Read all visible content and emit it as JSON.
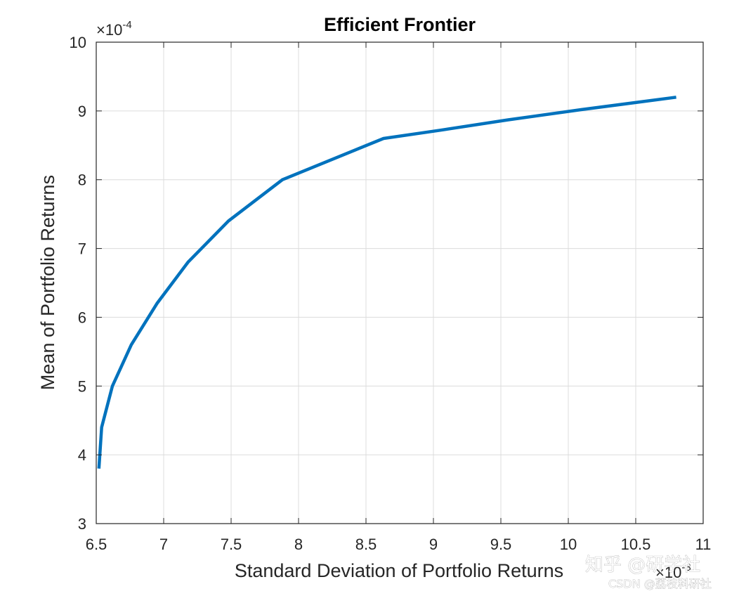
{
  "chart_data": {
    "type": "line",
    "title": "Efficient Frontier",
    "xlabel": "Standard Deviation of Portfolio Returns",
    "ylabel": "Mean of Portfolio Returns",
    "x_exponent": {
      "base": "×10",
      "power": "-3"
    },
    "y_exponent": {
      "base": "×10",
      "power": "-4"
    },
    "xlim": [
      6.5,
      11
    ],
    "ylim": [
      3,
      10
    ],
    "xticks": [
      "6.5",
      "7",
      "7.5",
      "8",
      "8.5",
      "9",
      "9.5",
      "10",
      "10.5",
      "11"
    ],
    "yticks": [
      "3",
      "4",
      "5",
      "6",
      "7",
      "8",
      "9",
      "10"
    ],
    "grid": true,
    "series": [
      {
        "color": "#0072BD",
        "x": [
          6.52,
          6.54,
          6.62,
          6.76,
          6.95,
          7.18,
          7.48,
          7.88,
          8.63,
          9.05,
          9.55,
          10.1,
          10.8
        ],
        "y": [
          3.8,
          4.4,
          5.0,
          5.6,
          6.2,
          6.8,
          7.4,
          8.0,
          8.6,
          8.72,
          8.87,
          9.02,
          9.2
        ]
      }
    ]
  },
  "watermark": {
    "line1": "知乎 @研学社",
    "line2": "CSDN @荔枝科研社"
  }
}
